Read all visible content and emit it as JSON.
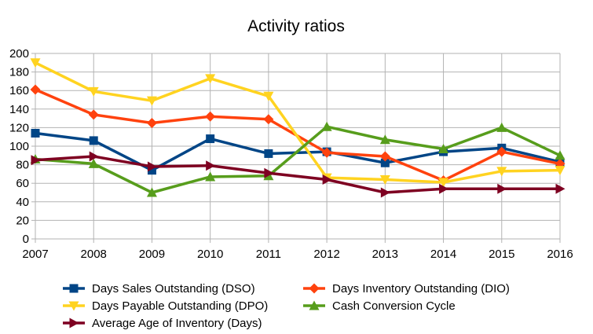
{
  "chart_data": {
    "type": "line",
    "title": "Activity ratios",
    "xlabel": "",
    "ylabel": "",
    "x": [
      "2007",
      "2008",
      "2009",
      "2010",
      "2011",
      "2012",
      "2013",
      "2014",
      "2015",
      "2016"
    ],
    "ylim": [
      0,
      200
    ],
    "yticks": [
      0,
      20,
      40,
      60,
      80,
      100,
      120,
      140,
      160,
      180,
      200
    ],
    "grid": true,
    "legend": "bottom",
    "series": [
      {
        "name": "Days Sales Outstanding (DSO)",
        "color": "#004586",
        "marker": "square",
        "values": [
          114,
          106,
          74,
          108,
          92,
          94,
          82,
          94,
          98,
          83
        ]
      },
      {
        "name": "Days Inventory Outstanding (DIO)",
        "color": "#ff420e",
        "marker": "diamond",
        "values": [
          161,
          134,
          125,
          132,
          129,
          93,
          89,
          63,
          94,
          81
        ]
      },
      {
        "name": "Days Payable Outstanding (DPO)",
        "color": "#ffd320",
        "marker": "triangle-down",
        "values": [
          190,
          159,
          149,
          173,
          154,
          66,
          64,
          61,
          73,
          74
        ]
      },
      {
        "name": "Cash Conversion Cycle",
        "color": "#579d1c",
        "marker": "triangle-up",
        "values": [
          86,
          81,
          50,
          67,
          68,
          121,
          107,
          97,
          120,
          90
        ]
      },
      {
        "name": "Average Age of Inventory (Days)",
        "color": "#7e0021",
        "marker": "triangle-right",
        "values": [
          85,
          89,
          78,
          79,
          71,
          64,
          50,
          54,
          54,
          54
        ]
      }
    ]
  }
}
